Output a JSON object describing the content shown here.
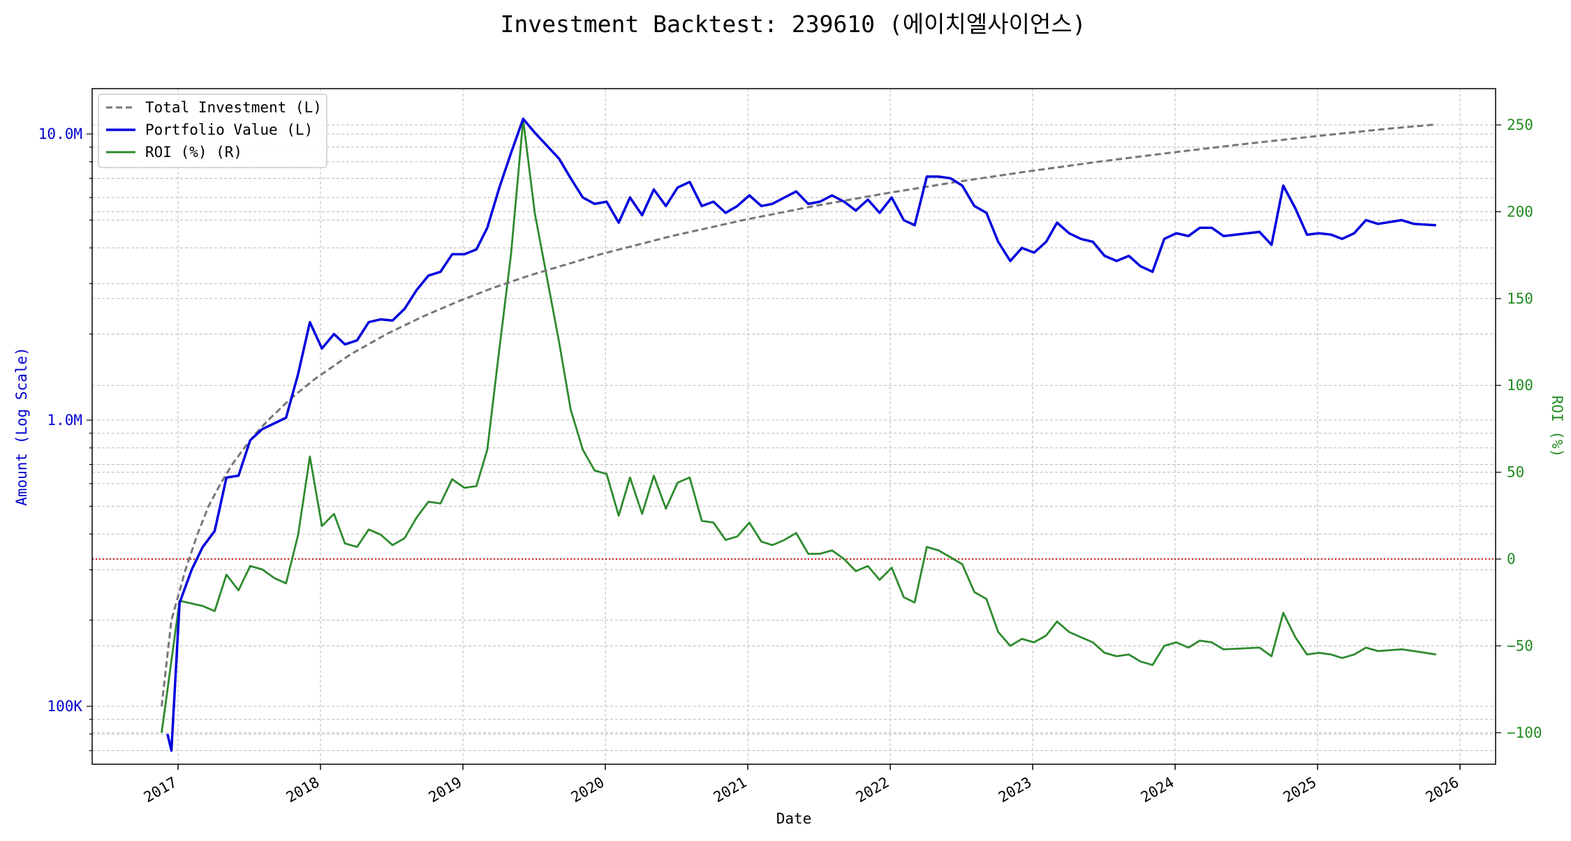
{
  "chart_data": {
    "type": "line",
    "title": "Investment Backtest: 239610 (에이치엘사이언스)",
    "xlabel": "Date",
    "ylabel_left": "Amount (Log Scale)",
    "ylabel_right": "ROI (%)",
    "y_left_scale": "log",
    "y_left_ticks": [
      "100K",
      "1.0M",
      "10.0M"
    ],
    "y_right_ticks": [
      "250",
      "200",
      "150",
      "100",
      "50",
      "0",
      "−50",
      "−100"
    ],
    "x_ticks": [
      "2017",
      "2018",
      "2019",
      "2020",
      "2021",
      "2022",
      "2023",
      "2024",
      "2025",
      "2026"
    ],
    "grid": true,
    "legend_position": "top-left",
    "zero_line": {
      "value": 0,
      "axis": "right",
      "color": "#cc0000",
      "style": "dotted"
    },
    "colors": {
      "total_investment": "#777777",
      "portfolio": "#0000dd",
      "roi": "#2e8b2e",
      "left_axis": "#0000cc",
      "right_axis": "#228b22"
    },
    "legend": [
      {
        "label": "Total Investment (L)",
        "style": "dashed",
        "color": "#777777"
      },
      {
        "label": "Portfolio Value (L)",
        "style": "solid",
        "color": "#0000dd"
      },
      {
        "label": "ROI (%) (R)",
        "style": "solid",
        "color": "#2e8b2e"
      }
    ],
    "series": [
      {
        "name": "Total Investment (L)",
        "axis": "left",
        "points": [
          [
            "2016-11-20",
            100000
          ],
          [
            "2016-12-15",
            200000
          ],
          [
            "2017-01-20",
            300000
          ],
          [
            "2017-02-20",
            400000
          ],
          [
            "2017-03-20",
            500000
          ],
          [
            "2017-04-20",
            600000
          ],
          [
            "2017-05-20",
            700000
          ],
          [
            "2017-06-20",
            800000
          ],
          [
            "2017-07-20",
            900000
          ],
          [
            "2017-08-20",
            1000000
          ],
          [
            "2017-10-20",
            1200000
          ],
          [
            "2017-12-20",
            1400000
          ],
          [
            "2018-03-20",
            1700000
          ],
          [
            "2018-06-20",
            2000000
          ],
          [
            "2018-09-20",
            2300000
          ],
          [
            "2018-12-20",
            2600000
          ],
          [
            "2019-03-20",
            2900000
          ],
          [
            "2019-06-20",
            3200000
          ],
          [
            "2019-12-20",
            3800000
          ],
          [
            "2020-06-20",
            4400000
          ],
          [
            "2020-12-20",
            5000000
          ],
          [
            "2021-06-20",
            5600000
          ],
          [
            "2021-12-20",
            6200000
          ],
          [
            "2022-06-20",
            6800000
          ],
          [
            "2022-12-20",
            7400000
          ],
          [
            "2023-06-20",
            8000000
          ],
          [
            "2023-12-20",
            8600000
          ],
          [
            "2024-06-20",
            9200000
          ],
          [
            "2024-12-20",
            9800000
          ],
          [
            "2025-06-20",
            10400000
          ],
          [
            "2025-11-01",
            10800000
          ]
        ]
      },
      {
        "name": "Portfolio Value (L)",
        "axis": "left",
        "points": [
          [
            "2016-12-05",
            80000
          ],
          [
            "2016-12-15",
            70000
          ],
          [
            "2017-01-05",
            230000
          ],
          [
            "2017-02-05",
            300000
          ],
          [
            "2017-03-05",
            360000
          ],
          [
            "2017-04-05",
            410000
          ],
          [
            "2017-05-05",
            630000
          ],
          [
            "2017-06-05",
            640000
          ],
          [
            "2017-07-05",
            850000
          ],
          [
            "2017-08-05",
            930000
          ],
          [
            "2017-10-05",
            1020000
          ],
          [
            "2017-11-05",
            1450000
          ],
          [
            "2017-12-05",
            2200000
          ],
          [
            "2018-01-05",
            1780000
          ],
          [
            "2018-02-05",
            2000000
          ],
          [
            "2018-03-05",
            1840000
          ],
          [
            "2018-04-05",
            1900000
          ],
          [
            "2018-05-05",
            2200000
          ],
          [
            "2018-06-05",
            2250000
          ],
          [
            "2018-07-05",
            2230000
          ],
          [
            "2018-08-05",
            2450000
          ],
          [
            "2018-09-05",
            2850000
          ],
          [
            "2018-10-05",
            3200000
          ],
          [
            "2018-11-05",
            3300000
          ],
          [
            "2018-12-05",
            3800000
          ],
          [
            "2019-01-05",
            3800000
          ],
          [
            "2019-02-05",
            3950000
          ],
          [
            "2019-03-05",
            4700000
          ],
          [
            "2019-04-05",
            6500000
          ],
          [
            "2019-05-05",
            8600000
          ],
          [
            "2019-06-05",
            11300000
          ],
          [
            "2019-07-05",
            10100000
          ],
          [
            "2019-08-05",
            9100000
          ],
          [
            "2019-09-05",
            8200000
          ],
          [
            "2019-10-05",
            7000000
          ],
          [
            "2019-11-05",
            6000000
          ],
          [
            "2019-12-05",
            5700000
          ],
          [
            "2020-01-05",
            5800000
          ],
          [
            "2020-02-05",
            4900000
          ],
          [
            "2020-03-05",
            6000000
          ],
          [
            "2020-04-05",
            5200000
          ],
          [
            "2020-05-05",
            6400000
          ],
          [
            "2020-06-05",
            5600000
          ],
          [
            "2020-07-05",
            6500000
          ],
          [
            "2020-08-05",
            6800000
          ],
          [
            "2020-09-05",
            5600000
          ],
          [
            "2020-10-05",
            5800000
          ],
          [
            "2020-11-05",
            5300000
          ],
          [
            "2020-12-05",
            5600000
          ],
          [
            "2021-01-05",
            6100000
          ],
          [
            "2021-02-05",
            5600000
          ],
          [
            "2021-03-05",
            5700000
          ],
          [
            "2021-04-05",
            6000000
          ],
          [
            "2021-05-05",
            6300000
          ],
          [
            "2021-06-05",
            5700000
          ],
          [
            "2021-07-05",
            5800000
          ],
          [
            "2021-08-05",
            6100000
          ],
          [
            "2021-09-05",
            5800000
          ],
          [
            "2021-10-05",
            5400000
          ],
          [
            "2021-11-05",
            5900000
          ],
          [
            "2021-12-05",
            5300000
          ],
          [
            "2022-01-05",
            6000000
          ],
          [
            "2022-02-05",
            5000000
          ],
          [
            "2022-03-05",
            4800000
          ],
          [
            "2022-04-05",
            7100000
          ],
          [
            "2022-05-05",
            7100000
          ],
          [
            "2022-06-05",
            7000000
          ],
          [
            "2022-07-05",
            6600000
          ],
          [
            "2022-08-05",
            5600000
          ],
          [
            "2022-09-05",
            5300000
          ],
          [
            "2022-10-05",
            4200000
          ],
          [
            "2022-11-05",
            3600000
          ],
          [
            "2022-12-05",
            4000000
          ],
          [
            "2023-01-05",
            3850000
          ],
          [
            "2023-02-05",
            4200000
          ],
          [
            "2023-03-05",
            4900000
          ],
          [
            "2023-04-05",
            4500000
          ],
          [
            "2023-05-05",
            4300000
          ],
          [
            "2023-06-05",
            4200000
          ],
          [
            "2023-07-05",
            3750000
          ],
          [
            "2023-08-05",
            3600000
          ],
          [
            "2023-09-05",
            3750000
          ],
          [
            "2023-10-05",
            3450000
          ],
          [
            "2023-11-05",
            3300000
          ],
          [
            "2023-12-05",
            4300000
          ],
          [
            "2024-01-05",
            4500000
          ],
          [
            "2024-02-05",
            4400000
          ],
          [
            "2024-03-05",
            4700000
          ],
          [
            "2024-04-05",
            4700000
          ],
          [
            "2024-05-05",
            4400000
          ],
          [
            "2024-06-05",
            4450000
          ],
          [
            "2024-07-05",
            4500000
          ],
          [
            "2024-08-05",
            4550000
          ],
          [
            "2024-09-05",
            4100000
          ],
          [
            "2024-10-05",
            6600000
          ],
          [
            "2024-11-05",
            5500000
          ],
          [
            "2024-12-05",
            4450000
          ],
          [
            "2025-01-05",
            4500000
          ],
          [
            "2025-02-05",
            4450000
          ],
          [
            "2025-03-05",
            4300000
          ],
          [
            "2025-04-05",
            4500000
          ],
          [
            "2025-05-05",
            5000000
          ],
          [
            "2025-06-05",
            4850000
          ],
          [
            "2025-08-05",
            5000000
          ],
          [
            "2025-09-05",
            4850000
          ],
          [
            "2025-11-01",
            4800000
          ]
        ]
      },
      {
        "name": "ROI (%) (R)",
        "axis": "right",
        "points": [
          [
            "2016-11-20",
            -100
          ],
          [
            "2017-01-05",
            -24
          ],
          [
            "2017-03-05",
            -27
          ],
          [
            "2017-04-05",
            -30
          ],
          [
            "2017-05-05",
            -9
          ],
          [
            "2017-06-05",
            -18
          ],
          [
            "2017-07-05",
            -4
          ],
          [
            "2017-08-05",
            -6
          ],
          [
            "2017-09-05",
            -11
          ],
          [
            "2017-10-05",
            -14
          ],
          [
            "2017-11-05",
            14
          ],
          [
            "2017-12-05",
            59
          ],
          [
            "2018-01-05",
            19
          ],
          [
            "2018-02-05",
            26
          ],
          [
            "2018-03-05",
            9
          ],
          [
            "2018-04-05",
            7
          ],
          [
            "2018-05-05",
            17
          ],
          [
            "2018-06-05",
            14
          ],
          [
            "2018-07-05",
            8
          ],
          [
            "2018-08-05",
            12
          ],
          [
            "2018-09-05",
            24
          ],
          [
            "2018-10-05",
            33
          ],
          [
            "2018-11-05",
            32
          ],
          [
            "2018-12-05",
            46
          ],
          [
            "2019-01-05",
            41
          ],
          [
            "2019-02-05",
            42
          ],
          [
            "2019-03-05",
            63
          ],
          [
            "2019-04-05",
            121
          ],
          [
            "2019-05-05",
            176
          ],
          [
            "2019-06-05",
            253
          ],
          [
            "2019-07-05",
            199
          ],
          [
            "2019-08-05",
            162
          ],
          [
            "2019-09-05",
            125
          ],
          [
            "2019-10-05",
            86
          ],
          [
            "2019-11-05",
            63
          ],
          [
            "2019-12-05",
            51
          ],
          [
            "2020-01-05",
            49
          ],
          [
            "2020-02-05",
            25
          ],
          [
            "2020-03-05",
            47
          ],
          [
            "2020-04-05",
            26
          ],
          [
            "2020-05-05",
            48
          ],
          [
            "2020-06-05",
            29
          ],
          [
            "2020-07-05",
            44
          ],
          [
            "2020-08-05",
            47
          ],
          [
            "2020-09-05",
            22
          ],
          [
            "2020-10-05",
            21
          ],
          [
            "2020-11-05",
            11
          ],
          [
            "2020-12-05",
            13
          ],
          [
            "2021-01-05",
            21
          ],
          [
            "2021-02-05",
            10
          ],
          [
            "2021-03-05",
            8
          ],
          [
            "2021-04-05",
            11
          ],
          [
            "2021-05-05",
            15
          ],
          [
            "2021-06-05",
            3
          ],
          [
            "2021-07-05",
            3
          ],
          [
            "2021-08-05",
            5
          ],
          [
            "2021-09-05",
            0
          ],
          [
            "2021-10-05",
            -7
          ],
          [
            "2021-11-05",
            -4
          ],
          [
            "2021-12-05",
            -12
          ],
          [
            "2022-01-05",
            -5
          ],
          [
            "2022-02-05",
            -22
          ],
          [
            "2022-03-05",
            -25
          ],
          [
            "2022-04-05",
            7
          ],
          [
            "2022-05-05",
            5
          ],
          [
            "2022-06-05",
            1
          ],
          [
            "2022-07-05",
            -3
          ],
          [
            "2022-08-05",
            -19
          ],
          [
            "2022-09-05",
            -23
          ],
          [
            "2022-10-05",
            -42
          ],
          [
            "2022-11-05",
            -50
          ],
          [
            "2022-12-05",
            -46
          ],
          [
            "2023-01-05",
            -48
          ],
          [
            "2023-02-05",
            -44
          ],
          [
            "2023-03-05",
            -36
          ],
          [
            "2023-04-05",
            -42
          ],
          [
            "2023-05-05",
            -45
          ],
          [
            "2023-06-05",
            -48
          ],
          [
            "2023-07-05",
            -54
          ],
          [
            "2023-08-05",
            -56
          ],
          [
            "2023-09-05",
            -55
          ],
          [
            "2023-10-05",
            -59
          ],
          [
            "2023-11-05",
            -61
          ],
          [
            "2023-12-05",
            -50
          ],
          [
            "2024-01-05",
            -48
          ],
          [
            "2024-02-05",
            -51
          ],
          [
            "2024-03-05",
            -47
          ],
          [
            "2024-04-05",
            -48
          ],
          [
            "2024-05-05",
            -52
          ],
          [
            "2024-08-05",
            -51
          ],
          [
            "2024-09-05",
            -56
          ],
          [
            "2024-10-05",
            -31
          ],
          [
            "2024-11-05",
            -45
          ],
          [
            "2024-12-05",
            -55
          ],
          [
            "2025-01-05",
            -54
          ],
          [
            "2025-02-05",
            -55
          ],
          [
            "2025-03-05",
            -57
          ],
          [
            "2025-04-05",
            -55
          ],
          [
            "2025-05-05",
            -51
          ],
          [
            "2025-06-05",
            -53
          ],
          [
            "2025-08-05",
            -52
          ],
          [
            "2025-09-05",
            -53
          ],
          [
            "2025-11-01",
            -55
          ]
        ]
      }
    ]
  }
}
